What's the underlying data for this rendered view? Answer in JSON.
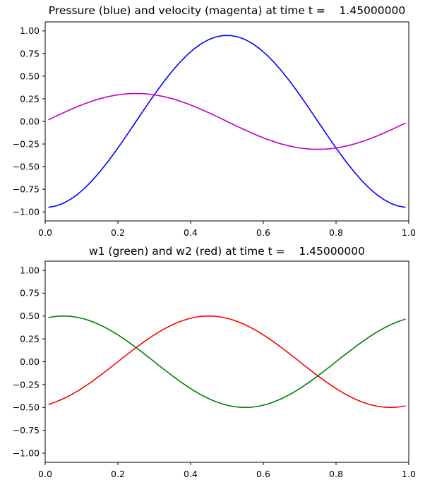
{
  "figure": {
    "background": "#ffffff",
    "text_color": "#000000",
    "axes_border_color": "#000000"
  },
  "chart_data": [
    {
      "type": "line",
      "title": "Pressure (blue) and velocity (magenta) at time t =    1.45000000",
      "xlabel": "",
      "ylabel": "",
      "xlim": [
        0.0,
        1.0
      ],
      "ylim": [
        -1.1,
        1.1
      ],
      "grid": false,
      "legend": "none",
      "xtick_values": [
        0.0,
        0.2,
        0.4,
        0.6,
        0.8,
        1.0
      ],
      "xtick_labels": [
        "0.0",
        "0.2",
        "0.4",
        "0.6",
        "0.8",
        "1.0"
      ],
      "ytick_values": [
        -1.0,
        -0.75,
        -0.5,
        -0.25,
        0.0,
        0.25,
        0.5,
        0.75,
        1.0
      ],
      "ytick_labels": [
        "−1.00",
        "−0.75",
        "−0.50",
        "−0.25",
        "0.00",
        "0.25",
        "0.50",
        "0.75",
        "1.00"
      ],
      "x": [
        0.01,
        0.03,
        0.05,
        0.07,
        0.09,
        0.11,
        0.13,
        0.15,
        0.17,
        0.19,
        0.21,
        0.23,
        0.25,
        0.27,
        0.29,
        0.31,
        0.33,
        0.35,
        0.37,
        0.39,
        0.41,
        0.43,
        0.45,
        0.47,
        0.49,
        0.51,
        0.53,
        0.55,
        0.57,
        0.59,
        0.61,
        0.63,
        0.65,
        0.67,
        0.69,
        0.71,
        0.73,
        0.75,
        0.77,
        0.79,
        0.81,
        0.83,
        0.85,
        0.87,
        0.89,
        0.91,
        0.93,
        0.95,
        0.97,
        0.99
      ],
      "series": [
        {
          "name": "pressure",
          "color": "#0000ff",
          "values": [
            -0.9492,
            -0.9342,
            -0.9045,
            -0.8605,
            -0.803,
            -0.7328,
            -0.651,
            -0.559,
            -0.4582,
            -0.3501,
            -0.2365,
            -0.1192,
            0.0,
            0.1192,
            0.2365,
            0.3501,
            0.4582,
            0.559,
            0.651,
            0.7328,
            0.803,
            0.8605,
            0.9045,
            0.9342,
            0.9492,
            0.9492,
            0.9342,
            0.9045,
            0.8605,
            0.803,
            0.7328,
            0.651,
            0.559,
            0.4582,
            0.3501,
            0.2365,
            0.1192,
            0.0,
            -0.1192,
            -0.2365,
            -0.3501,
            -0.4582,
            -0.559,
            -0.651,
            -0.7328,
            -0.803,
            -0.8605,
            -0.9045,
            -0.9342,
            -0.9492
          ]
        },
        {
          "name": "velocity",
          "color": "#bf00bf",
          "values": [
            0.0194,
            0.0579,
            0.0955,
            0.1316,
            0.1656,
            0.197,
            0.2253,
            0.25,
            0.2708,
            0.2873,
            0.2993,
            0.3066,
            0.309,
            0.3066,
            0.2993,
            0.2873,
            0.2708,
            0.25,
            0.2253,
            0.197,
            0.1656,
            0.1316,
            0.0955,
            0.0579,
            0.0194,
            -0.0194,
            -0.0579,
            -0.0955,
            -0.1316,
            -0.1656,
            -0.197,
            -0.2253,
            -0.25,
            -0.2708,
            -0.2873,
            -0.2993,
            -0.3066,
            -0.309,
            -0.3066,
            -0.2993,
            -0.2873,
            -0.2708,
            -0.25,
            -0.2253,
            -0.197,
            -0.1656,
            -0.1316,
            -0.0955,
            -0.0579,
            -0.0194
          ]
        }
      ]
    },
    {
      "type": "line",
      "title": "w1 (green) and w2 (red) at time t =    1.45000000",
      "xlabel": "",
      "ylabel": "",
      "xlim": [
        0.0,
        1.0
      ],
      "ylim": [
        -1.1,
        1.1
      ],
      "grid": false,
      "legend": "none",
      "xtick_values": [
        0.0,
        0.2,
        0.4,
        0.6,
        0.8,
        1.0
      ],
      "xtick_labels": [
        "0.0",
        "0.2",
        "0.4",
        "0.6",
        "0.8",
        "1.0"
      ],
      "ytick_values": [
        -1.0,
        -0.75,
        -0.5,
        -0.25,
        0.0,
        0.25,
        0.5,
        0.75,
        1.0
      ],
      "ytick_labels": [
        "−1.00",
        "−0.75",
        "−0.50",
        "−0.25",
        "0.00",
        "0.25",
        "0.50",
        "0.75",
        "1.00"
      ],
      "x": [
        0.01,
        0.03,
        0.05,
        0.07,
        0.09,
        0.11,
        0.13,
        0.15,
        0.17,
        0.19,
        0.21,
        0.23,
        0.25,
        0.27,
        0.29,
        0.31,
        0.33,
        0.35,
        0.37,
        0.39,
        0.41,
        0.43,
        0.45,
        0.47,
        0.49,
        0.51,
        0.53,
        0.55,
        0.57,
        0.59,
        0.61,
        0.63,
        0.65,
        0.67,
        0.69,
        0.71,
        0.73,
        0.75,
        0.77,
        0.79,
        0.81,
        0.83,
        0.85,
        0.87,
        0.89,
        0.91,
        0.93,
        0.95,
        0.97,
        0.99
      ],
      "series": [
        {
          "name": "w1",
          "color": "#008000",
          "values": [
            0.4843,
            0.4961,
            0.5,
            0.4961,
            0.4843,
            0.4649,
            0.4381,
            0.4045,
            0.3645,
            0.3187,
            0.2679,
            0.2129,
            0.1545,
            0.0937,
            0.0314,
            -0.0314,
            -0.0937,
            -0.1545,
            -0.2129,
            -0.2679,
            -0.3187,
            -0.3645,
            -0.4045,
            -0.4381,
            -0.4649,
            -0.4843,
            -0.4961,
            -0.5,
            -0.4961,
            -0.4843,
            -0.4649,
            -0.4381,
            -0.4045,
            -0.3645,
            -0.3187,
            -0.2679,
            -0.2129,
            -0.1545,
            -0.0937,
            -0.0314,
            0.0314,
            0.0937,
            0.1545,
            0.2129,
            0.2679,
            0.3187,
            0.3645,
            0.4045,
            0.4381,
            0.4649
          ]
        },
        {
          "name": "w2",
          "color": "#ff0000",
          "values": [
            -0.4649,
            -0.4381,
            -0.4045,
            -0.3645,
            -0.3187,
            -0.2679,
            -0.2129,
            -0.1545,
            -0.0937,
            -0.0314,
            0.0314,
            0.0937,
            0.1545,
            0.2129,
            0.2679,
            0.3187,
            0.3645,
            0.4045,
            0.4381,
            0.4649,
            0.4843,
            0.4961,
            0.5,
            0.4961,
            0.4843,
            0.4649,
            0.4381,
            0.4045,
            0.3645,
            0.3187,
            0.2679,
            0.2129,
            0.1545,
            0.0937,
            0.0314,
            -0.0314,
            -0.0937,
            -0.1545,
            -0.2129,
            -0.2679,
            -0.3187,
            -0.3645,
            -0.4045,
            -0.4381,
            -0.4649,
            -0.4843,
            -0.4961,
            -0.5,
            -0.4961,
            -0.4843
          ]
        }
      ]
    }
  ]
}
